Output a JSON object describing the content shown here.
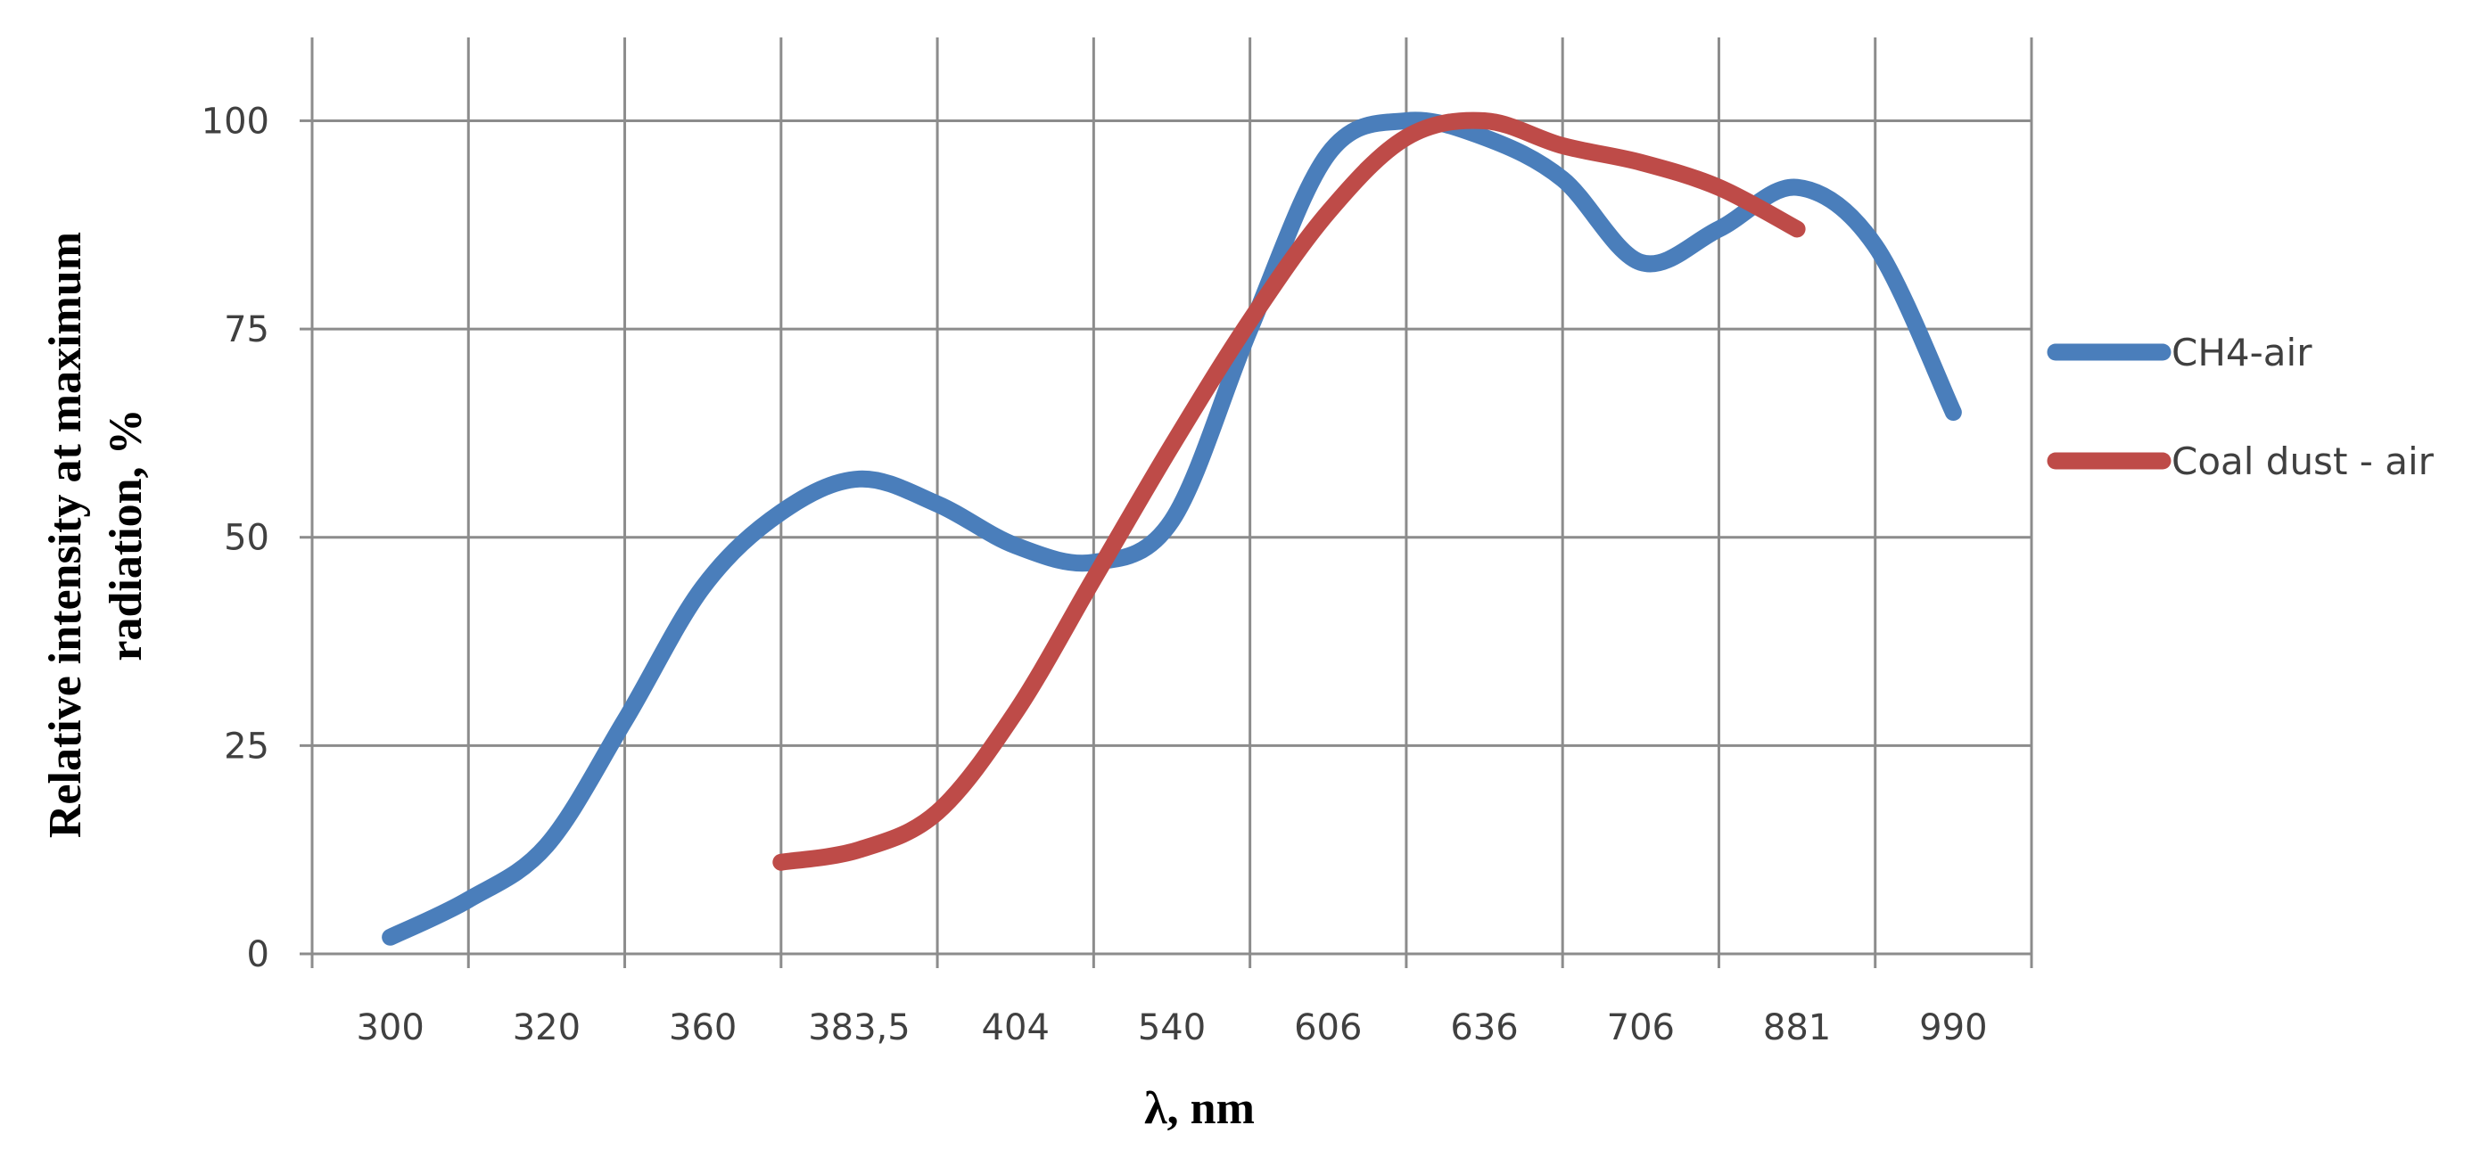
{
  "chart_data": {
    "type": "line",
    "title": "",
    "xlabel": "λ, nm",
    "ylabel_line1": "Relative intensity at maximum",
    "ylabel_line2": "radiation,  %",
    "categories": [
      "300",
      "320",
      "360",
      "383,5",
      "404",
      "540",
      "606",
      "636",
      "706",
      "881",
      "990"
    ],
    "yticks": [
      "0",
      "25",
      "50",
      "75",
      "100"
    ],
    "ylim": [
      0,
      110
    ],
    "grid": true,
    "legend_position": "right",
    "series": [
      {
        "name": "CH4-air",
        "color": "#4a7ebb",
        "x": [
          0,
          0.5,
          1,
          1.5,
          2,
          2.5,
          3,
          3.5,
          4,
          4.5,
          5,
          5.5,
          6,
          6.5,
          7,
          7.5,
          8,
          8.5,
          9,
          9.5,
          10
        ],
        "values": [
          2,
          6.5,
          13,
          28,
          44,
          53,
          57,
          54,
          49,
          47,
          52,
          75,
          96,
          100,
          98,
          93,
          83,
          87,
          92,
          85,
          65
        ]
      },
      {
        "name": "Coal dust - air",
        "color": "#be4b48",
        "x": [
          2.5,
          3,
          3.5,
          4,
          4.5,
          5,
          5.5,
          6,
          6.5,
          7,
          7.5,
          8,
          8.5,
          9
        ],
        "values": [
          11,
          12.5,
          17,
          29,
          45,
          61,
          76,
          89,
          98,
          100,
          97,
          95,
          92,
          87
        ]
      }
    ]
  }
}
